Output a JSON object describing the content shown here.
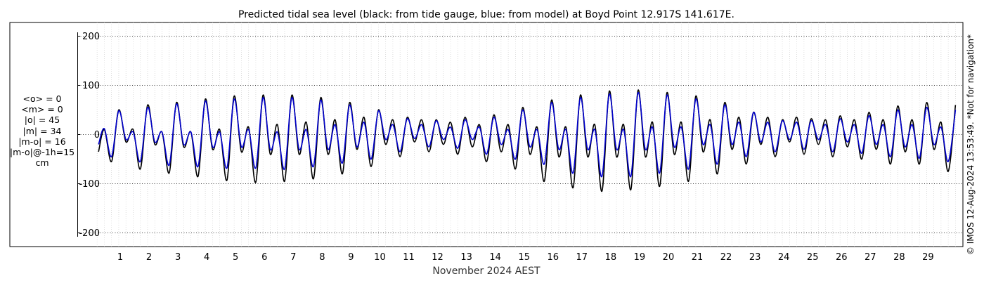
{
  "chart_data": {
    "type": "line",
    "title": "Predicted tidal sea level (black: from tide gauge, blue: from model) at Boyd Point 12.917S 141.617E.",
    "xlabel": "November 2024 AEST",
    "ylabel": "",
    "xlim": [
      0.2,
      30.0
    ],
    "ylim": [
      -230,
      230
    ],
    "yticks": [
      -200,
      -100,
      0,
      100,
      200
    ],
    "ytick_labels": [
      "-200",
      "-100",
      "0",
      "100",
      "200"
    ],
    "xticks": [
      1,
      2,
      3,
      4,
      5,
      6,
      7,
      8,
      9,
      10,
      11,
      12,
      13,
      14,
      15,
      16,
      17,
      18,
      19,
      20,
      21,
      22,
      23,
      24,
      25,
      26,
      27,
      28,
      29
    ],
    "xtick_labels": [
      "1",
      "2",
      "3",
      "4",
      "5",
      "6",
      "7",
      "8",
      "9",
      "10",
      "11",
      "12",
      "13",
      "14",
      "15",
      "16",
      "17",
      "18",
      "19",
      "20",
      "21",
      "22",
      "23",
      "24",
      "25",
      "26",
      "27",
      "28",
      "29"
    ],
    "grid": true,
    "series": [
      {
        "name": "from tide gauge",
        "color": "#000000",
        "x": [
          0.25,
          0.45,
          0.7,
          0.95,
          1.2,
          1.45,
          1.7,
          1.95,
          2.2,
          2.45,
          2.7,
          2.95,
          3.2,
          3.45,
          3.7,
          3.95,
          4.2,
          4.45,
          4.7,
          4.95,
          5.2,
          5.45,
          5.7,
          5.95,
          6.2,
          6.45,
          6.7,
          6.95,
          7.2,
          7.45,
          7.7,
          7.95,
          8.2,
          8.45,
          8.7,
          8.95,
          9.2,
          9.45,
          9.7,
          9.95,
          10.2,
          10.45,
          10.7,
          10.95,
          11.2,
          11.45,
          11.7,
          11.95,
          12.2,
          12.45,
          12.7,
          12.95,
          13.2,
          13.45,
          13.7,
          13.95,
          14.2,
          14.45,
          14.7,
          14.95,
          15.2,
          15.45,
          15.7,
          15.95,
          16.2,
          16.45,
          16.7,
          16.95,
          17.2,
          17.45,
          17.7,
          17.95,
          18.2,
          18.45,
          18.7,
          18.95,
          19.2,
          19.45,
          19.7,
          19.95,
          20.2,
          20.45,
          20.7,
          20.95,
          21.2,
          21.45,
          21.7,
          21.95,
          22.2,
          22.45,
          22.7,
          22.95,
          23.2,
          23.45,
          23.7,
          23.95,
          24.2,
          24.45,
          24.7,
          24.95,
          25.2,
          25.45,
          25.7,
          25.95,
          26.2,
          26.45,
          26.7,
          26.95,
          27.2,
          27.45,
          27.7,
          27.95,
          28.2,
          28.45,
          28.7,
          28.95,
          29.2,
          29.45,
          29.7,
          29.95
        ],
        "values": [
          -35,
          10,
          -55,
          50,
          -15,
          10,
          -70,
          60,
          -20,
          5,
          -78,
          65,
          -25,
          5,
          -85,
          72,
          -30,
          10,
          -93,
          78,
          -35,
          15,
          -97,
          80,
          -40,
          20,
          -95,
          80,
          -40,
          25,
          -90,
          75,
          -40,
          30,
          -80,
          65,
          -30,
          35,
          -65,
          50,
          -20,
          30,
          -45,
          35,
          -15,
          30,
          -35,
          30,
          -20,
          25,
          -40,
          35,
          -25,
          20,
          -55,
          40,
          -35,
          20,
          -70,
          55,
          -40,
          15,
          -95,
          70,
          -45,
          15,
          -108,
          80,
          -45,
          20,
          -115,
          88,
          -45,
          20,
          -112,
          90,
          -45,
          25,
          -105,
          85,
          -40,
          25,
          -95,
          78,
          -35,
          30,
          -80,
          65,
          -30,
          35,
          -60,
          45,
          -20,
          35,
          -45,
          30,
          -15,
          35,
          -40,
          32,
          -20,
          30,
          -45,
          38,
          -25,
          30,
          -50,
          45,
          -30,
          30,
          -60,
          58,
          -35,
          30,
          -60,
          65,
          -30,
          25,
          -75,
          60
        ]
      },
      {
        "name": "from model",
        "color": "#0000cc",
        "x": [
          0.25,
          0.45,
          0.7,
          0.95,
          1.2,
          1.45,
          1.7,
          1.95,
          2.2,
          2.45,
          2.7,
          2.95,
          3.2,
          3.45,
          3.7,
          3.95,
          4.2,
          4.45,
          4.7,
          4.95,
          5.2,
          5.45,
          5.7,
          5.95,
          6.2,
          6.45,
          6.7,
          6.95,
          7.2,
          7.45,
          7.7,
          7.95,
          8.2,
          8.45,
          8.7,
          8.95,
          9.2,
          9.45,
          9.7,
          9.95,
          10.2,
          10.45,
          10.7,
          10.95,
          11.2,
          11.45,
          11.7,
          11.95,
          12.2,
          12.45,
          12.7,
          12.95,
          13.2,
          13.45,
          13.7,
          13.95,
          14.2,
          14.45,
          14.7,
          14.95,
          15.2,
          15.45,
          15.7,
          15.95,
          16.2,
          16.45,
          16.7,
          16.95,
          17.2,
          17.45,
          17.7,
          17.95,
          18.2,
          18.45,
          18.7,
          18.95,
          19.2,
          19.45,
          19.7,
          19.95,
          20.2,
          20.45,
          20.7,
          20.95,
          21.2,
          21.45,
          21.7,
          21.95,
          22.2,
          22.45,
          22.7,
          22.95,
          23.2,
          23.45,
          23.7,
          23.95,
          24.2,
          24.45,
          24.7,
          24.95,
          25.2,
          25.45,
          25.7,
          25.95,
          26.2,
          26.45,
          26.7,
          26.95,
          27.2,
          27.45,
          27.7,
          27.95,
          28.2,
          28.45,
          28.7,
          28.95,
          29.2,
          29.45,
          29.7,
          29.95
        ],
        "values": [
          -20,
          12,
          -45,
          48,
          -10,
          5,
          -55,
          55,
          -15,
          5,
          -62,
          62,
          -20,
          5,
          -65,
          68,
          -25,
          5,
          -68,
          72,
          -25,
          10,
          -68,
          75,
          -30,
          5,
          -70,
          75,
          -30,
          10,
          -65,
          70,
          -30,
          20,
          -58,
          60,
          -25,
          25,
          -50,
          48,
          -10,
          20,
          -35,
          32,
          -8,
          20,
          -25,
          28,
          -10,
          15,
          -28,
          30,
          -10,
          15,
          -40,
          35,
          -20,
          10,
          -50,
          50,
          -25,
          10,
          -60,
          65,
          -30,
          10,
          -78,
          75,
          -30,
          10,
          -85,
          82,
          -30,
          10,
          -85,
          85,
          -30,
          15,
          -78,
          80,
          -25,
          15,
          -70,
          72,
          -20,
          20,
          -60,
          60,
          -20,
          25,
          -45,
          45,
          -15,
          25,
          -35,
          28,
          -10,
          25,
          -30,
          28,
          -10,
          20,
          -35,
          32,
          -15,
          20,
          -38,
          38,
          -20,
          20,
          -45,
          50,
          -25,
          20,
          -48,
          55,
          -20,
          15,
          -55,
          50
        ]
      }
    ]
  },
  "stats": {
    "lines": [
      "<o> = 0",
      "<m> = 0",
      "|o| = 45",
      "|m| = 34",
      "|m-o| = 16",
      "|m-o|@-1h=15",
      "cm"
    ]
  },
  "credit": "© IMOS 12-Aug-2024 13:53:49. *Not for navigation*"
}
